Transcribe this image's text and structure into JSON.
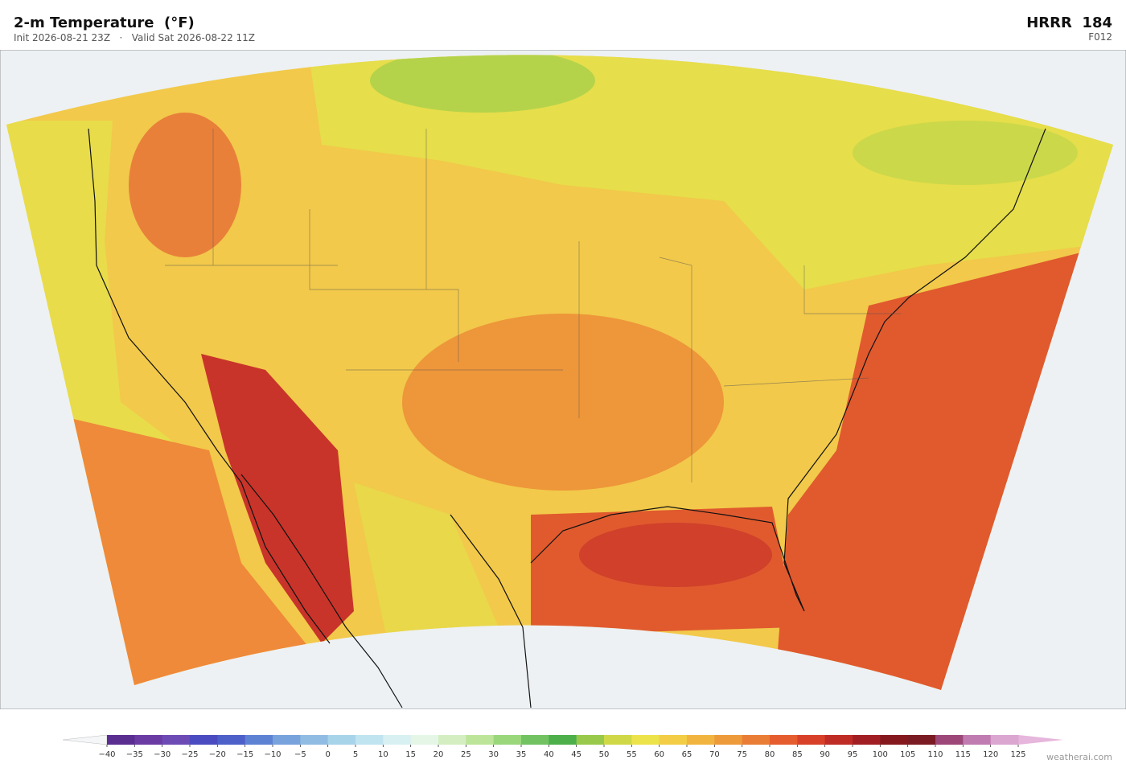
{
  "header": {
    "title": "2-m Temperature  (°F)",
    "subtitle": "Init 2026-08-21 23Z   ·   Valid Sat 2026-08-22 11Z",
    "model": "HRRR  184",
    "forecast_hour": "F012"
  },
  "colorbar": {
    "ticks": [
      {
        "value": -40,
        "label": "−40"
      },
      {
        "value": -35,
        "label": "−35"
      },
      {
        "value": -30,
        "label": "−30"
      },
      {
        "value": -25,
        "label": "−25"
      },
      {
        "value": -20,
        "label": "−20"
      },
      {
        "value": -15,
        "label": "−15"
      },
      {
        "value": -10,
        "label": "−10"
      },
      {
        "value": -5,
        "label": "−5"
      },
      0,
      5,
      10,
      15,
      20,
      25,
      30,
      35,
      40,
      45,
      50,
      55,
      60,
      65,
      70,
      75,
      80,
      85,
      90,
      95,
      100,
      105,
      110,
      115,
      120,
      125
    ],
    "colors": [
      "#5a2d91",
      "#6a3ca3",
      "#6d4bb5",
      "#4a4bc0",
      "#4d5fc8",
      "#5e82d3",
      "#78a2dc",
      "#90bce3",
      "#a8d4ea",
      "#c0e4f0",
      "#d8f0f2",
      "#e5f6e6",
      "#d4eec2",
      "#bde59a",
      "#9ad77b",
      "#72c262",
      "#4caf4a",
      "#98c94a",
      "#cfd846",
      "#ece24a",
      "#f2cd45",
      "#f1b53f",
      "#ed9a3a",
      "#ea7d35",
      "#e55d2e",
      "#d8402a",
      "#bf2b25",
      "#a11f22",
      "#85181f",
      "#7a1a22",
      "#9c4778",
      "#c07bb0",
      "#dba6d0"
    ],
    "under_color": "#f4f6f8",
    "over_color": "#e6b6dc"
  },
  "footer": {
    "credit": "weatherai.com"
  }
}
